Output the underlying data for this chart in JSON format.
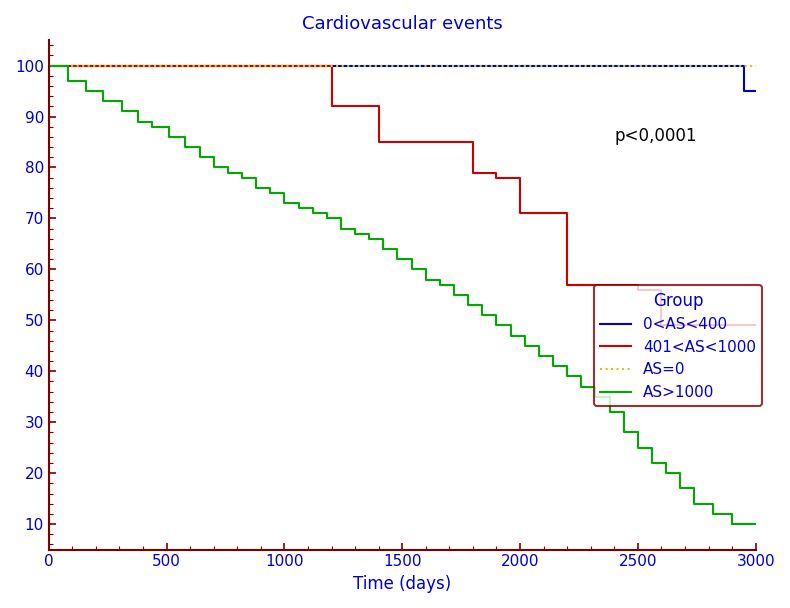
{
  "title": "Cardiovascular events",
  "xlabel": "Time (days)",
  "xlim": [
    0,
    3000
  ],
  "ylim": [
    5,
    105
  ],
  "yticks": [
    10,
    20,
    30,
    40,
    50,
    60,
    70,
    80,
    90,
    100
  ],
  "xticks": [
    0,
    500,
    1000,
    1500,
    2000,
    2500,
    3000
  ],
  "title_color": "#0000CC",
  "axis_color": "#800000",
  "tick_label_color": "#0000CC",
  "xlabel_color": "#0000CC",
  "p_value_text": "p<0,0001",
  "legend_title": "Group",
  "legend_title_color": "#0000CC",
  "legend_text_color": "#0000CC",
  "legend_edgecolor": "#800000",
  "groups": [
    {
      "label": "0<AS<400",
      "color": "#0000CC",
      "linestyle": "solid",
      "times": [
        0,
        2900,
        2950,
        3000
      ],
      "survival": [
        100,
        100,
        95,
        95
      ]
    },
    {
      "label": "401<AS<1000",
      "color": "#CC0000",
      "linestyle": "solid",
      "times": [
        0,
        1100,
        1200,
        1400,
        1700,
        1800,
        1900,
        2000,
        2200,
        2300,
        2500,
        2600,
        3000
      ],
      "survival": [
        100,
        100,
        92,
        85,
        85,
        79,
        78,
        71,
        57,
        57,
        56,
        49,
        49
      ]
    },
    {
      "label": "AS=0",
      "color": "#CCCC00",
      "linestyle": "dotted",
      "times": [
        0,
        3000
      ],
      "survival": [
        100,
        100
      ]
    },
    {
      "label": "AS>1000",
      "color": "#00AA00",
      "linestyle": "solid",
      "times": [
        0,
        80,
        160,
        230,
        310,
        380,
        440,
        510,
        580,
        640,
        700,
        760,
        820,
        880,
        940,
        1000,
        1060,
        1120,
        1180,
        1240,
        1300,
        1360,
        1420,
        1480,
        1540,
        1600,
        1660,
        1720,
        1780,
        1840,
        1900,
        1960,
        2020,
        2080,
        2140,
        2200,
        2260,
        2320,
        2380,
        2440,
        2500,
        2560,
        2620,
        2680,
        2740,
        2820,
        2900,
        3000
      ],
      "survival": [
        100,
        97,
        95,
        93,
        91,
        89,
        88,
        86,
        84,
        82,
        80,
        79,
        78,
        76,
        75,
        73,
        72,
        71,
        70,
        68,
        67,
        66,
        64,
        62,
        60,
        58,
        57,
        55,
        53,
        51,
        49,
        47,
        45,
        43,
        41,
        39,
        37,
        35,
        32,
        28,
        25,
        22,
        20,
        17,
        14,
        12,
        10,
        10
      ]
    }
  ]
}
